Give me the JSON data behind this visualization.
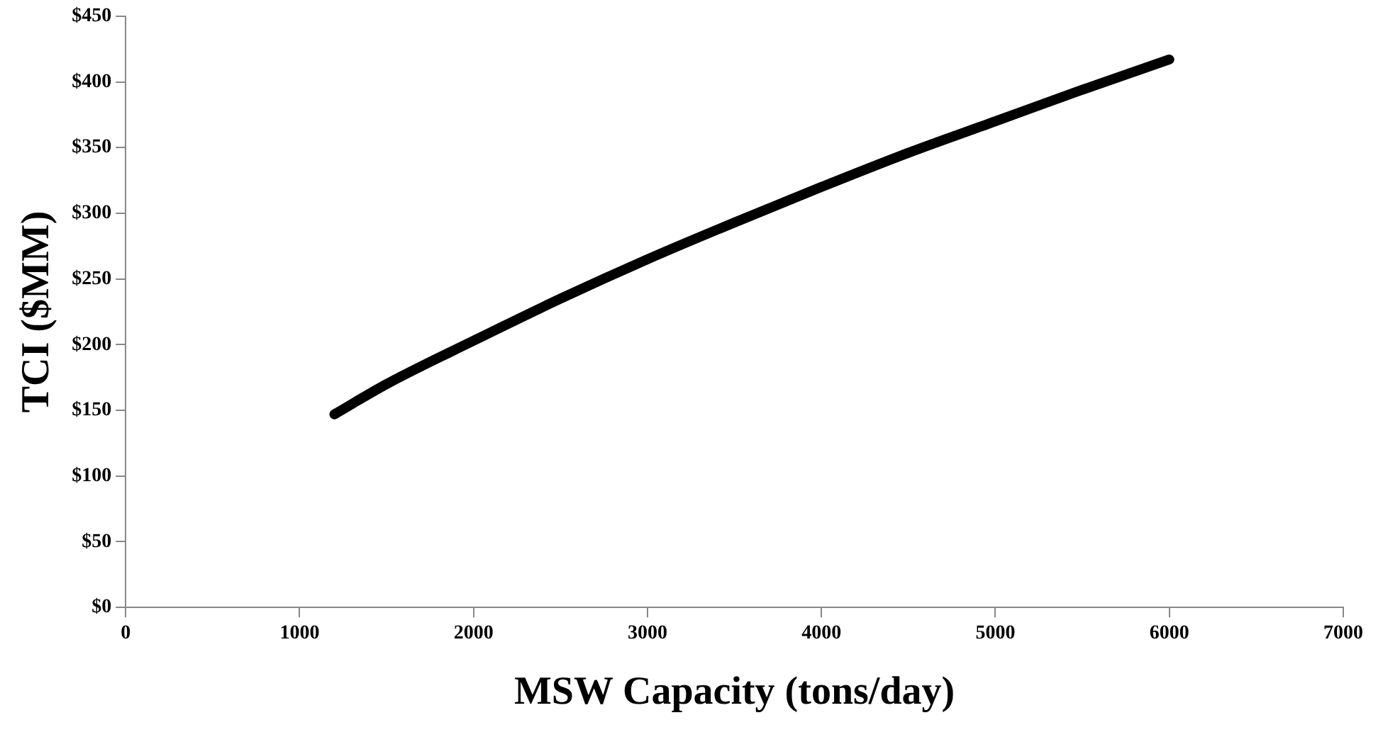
{
  "chart_data": {
    "type": "line",
    "xlabel": "MSW Capacity (tons/day)",
    "ylabel": "TCI ($MM)",
    "x": [
      1200,
      1500,
      2000,
      2500,
      3000,
      3500,
      4000,
      4500,
      5000,
      5500,
      6000
    ],
    "series": [
      {
        "color": "#000000",
        "values": [
          147,
          170,
          203,
          235,
          265,
          293,
          320,
          346,
          370,
          394,
          417
        ]
      }
    ],
    "xlim": [
      0,
      7000
    ],
    "xticks": [
      0,
      1000,
      2000,
      3000,
      4000,
      5000,
      6000,
      7000
    ],
    "ylim": [
      0,
      450
    ],
    "yticks": [
      {
        "value": 0,
        "label": "$0"
      },
      {
        "value": 50,
        "label": "$50"
      },
      {
        "value": 100,
        "label": "$100"
      },
      {
        "value": 150,
        "label": "$150"
      },
      {
        "value": 200,
        "label": "$200"
      },
      {
        "value": 250,
        "label": "$250"
      },
      {
        "value": 300,
        "label": "$300"
      },
      {
        "value": 350,
        "label": "$350"
      },
      {
        "value": 400,
        "label": "$400"
      },
      {
        "value": 450,
        "label": "$450"
      }
    ],
    "grid": false,
    "legend": false,
    "marker": "none",
    "line_style": "solid"
  }
}
